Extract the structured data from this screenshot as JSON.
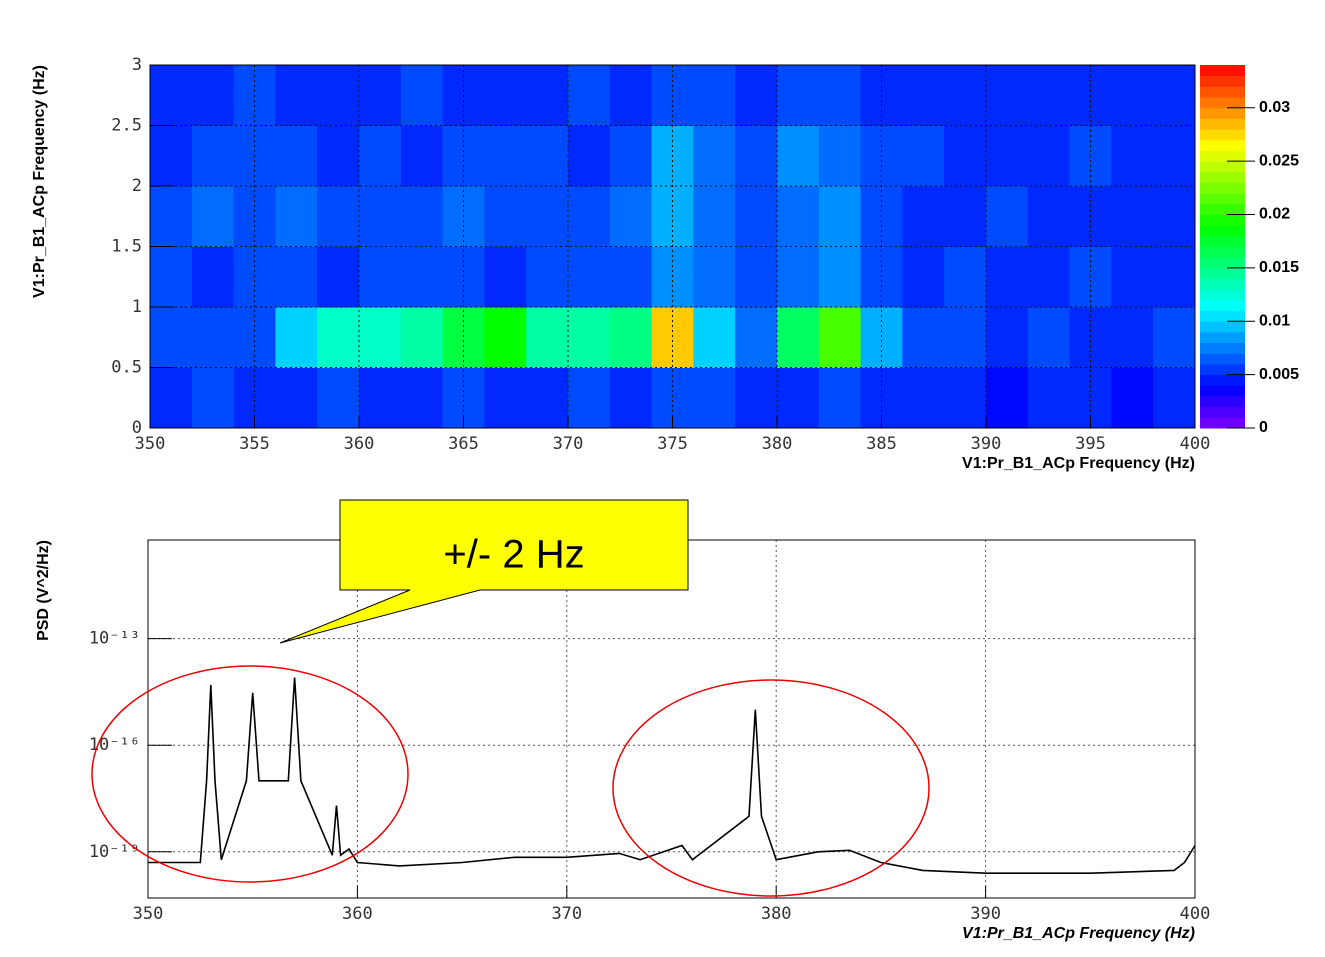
{
  "chart_data": [
    {
      "type": "heatmap",
      "x_label": "V1:Pr_B1_ACp Frequency (Hz)",
      "y_label": "V1:Pr_B1_ACp Frequency (Hz)",
      "xbins": [
        350,
        352,
        354,
        356,
        358,
        360,
        362,
        364,
        366,
        368,
        370,
        372,
        374,
        376,
        378,
        380,
        382,
        384,
        386,
        388,
        390,
        392,
        394,
        396,
        398,
        400
      ],
      "ybins": [
        0,
        0.5,
        1,
        1.5,
        2,
        2.5,
        3
      ],
      "z": [
        [
          0.005,
          0.006,
          0.005,
          0.005,
          0.006,
          0.005,
          0.005,
          0.006,
          0.005,
          0.005,
          0.006,
          0.005,
          0.006,
          0.006,
          0.005,
          0.005,
          0.006,
          0.005,
          0.005,
          0.005,
          0.004,
          0.005,
          0.005,
          0.004,
          0.005
        ],
        [
          0.006,
          0.006,
          0.006,
          0.01,
          0.013,
          0.013,
          0.014,
          0.017,
          0.019,
          0.014,
          0.014,
          0.015,
          0.028,
          0.01,
          0.007,
          0.016,
          0.021,
          0.009,
          0.006,
          0.006,
          0.005,
          0.006,
          0.005,
          0.005,
          0.006
        ],
        [
          0.006,
          0.005,
          0.006,
          0.006,
          0.005,
          0.006,
          0.006,
          0.006,
          0.005,
          0.006,
          0.006,
          0.006,
          0.008,
          0.007,
          0.006,
          0.007,
          0.008,
          0.006,
          0.005,
          0.006,
          0.005,
          0.005,
          0.006,
          0.005,
          0.005
        ],
        [
          0.006,
          0.007,
          0.006,
          0.007,
          0.006,
          0.006,
          0.006,
          0.007,
          0.006,
          0.006,
          0.006,
          0.007,
          0.009,
          0.007,
          0.006,
          0.007,
          0.008,
          0.006,
          0.005,
          0.005,
          0.006,
          0.005,
          0.005,
          0.005,
          0.005
        ],
        [
          0.005,
          0.006,
          0.006,
          0.006,
          0.005,
          0.006,
          0.005,
          0.006,
          0.006,
          0.006,
          0.005,
          0.006,
          0.009,
          0.007,
          0.006,
          0.008,
          0.007,
          0.006,
          0.006,
          0.005,
          0.005,
          0.005,
          0.006,
          0.005,
          0.005
        ],
        [
          0.005,
          0.005,
          0.006,
          0.005,
          0.005,
          0.005,
          0.006,
          0.005,
          0.005,
          0.005,
          0.006,
          0.005,
          0.006,
          0.006,
          0.005,
          0.006,
          0.006,
          0.005,
          0.005,
          0.005,
          0.005,
          0.005,
          0.005,
          0.005,
          0.005
        ]
      ],
      "xlim": [
        350,
        400
      ],
      "xticks": [
        350,
        355,
        360,
        365,
        370,
        375,
        380,
        385,
        390,
        395,
        400
      ],
      "ylim": [
        0,
        3
      ],
      "yticks": [
        0,
        0.5,
        1,
        1.5,
        2,
        2.5,
        3
      ],
      "zlim": [
        0,
        0.034
      ],
      "zticks": [
        0,
        0.005,
        0.01,
        0.015,
        0.02,
        0.025,
        0.03
      ],
      "grid": true
    },
    {
      "type": "line",
      "x_label": "V1:Pr_B1_ACp Frequency (Hz)",
      "y_label": "PSD (V^2/Hz)",
      "annotation": "+/- 2 Hz",
      "color": "#000000",
      "x": [
        350,
        352.5,
        352.8,
        353,
        353.2,
        353.5,
        354.7,
        355,
        355.3,
        356.7,
        357,
        357.3,
        358.8,
        359,
        359.2,
        359.6,
        360,
        362,
        365,
        367.5,
        370,
        372.5,
        373.5,
        375.5,
        376,
        378.7,
        379,
        379.3,
        380,
        382,
        383.5,
        385,
        387,
        390,
        395,
        399,
        399.5,
        400
      ],
      "values": [
        5e-20,
        5e-20,
        1e-17,
        5e-15,
        1e-17,
        6e-20,
        1e-17,
        3e-15,
        1e-17,
        1e-17,
        8e-15,
        1e-17,
        8e-20,
        2e-18,
        8e-20,
        1.2e-19,
        5e-20,
        4e-20,
        5e-20,
        7e-20,
        7e-20,
        9e-20,
        6e-20,
        1.5e-19,
        6e-20,
        1e-18,
        1e-15,
        1e-18,
        6e-20,
        1e-19,
        1.1e-19,
        5e-20,
        3e-20,
        2.5e-20,
        2.5e-20,
        3e-20,
        5e-20,
        1.5e-19
      ],
      "xlim": [
        350,
        400
      ],
      "xticks": [
        350,
        360,
        370,
        380,
        390,
        400
      ],
      "ylim": [
        5e-21,
        6e-11
      ],
      "log_y": true,
      "yticks": [
        {
          "value": 1e-19,
          "label": "10⁻¹⁹"
        },
        {
          "value": 1e-16,
          "label": "10⁻¹⁶"
        },
        {
          "value": 1e-13,
          "label": "10⁻¹³"
        }
      ],
      "grid": true
    }
  ]
}
